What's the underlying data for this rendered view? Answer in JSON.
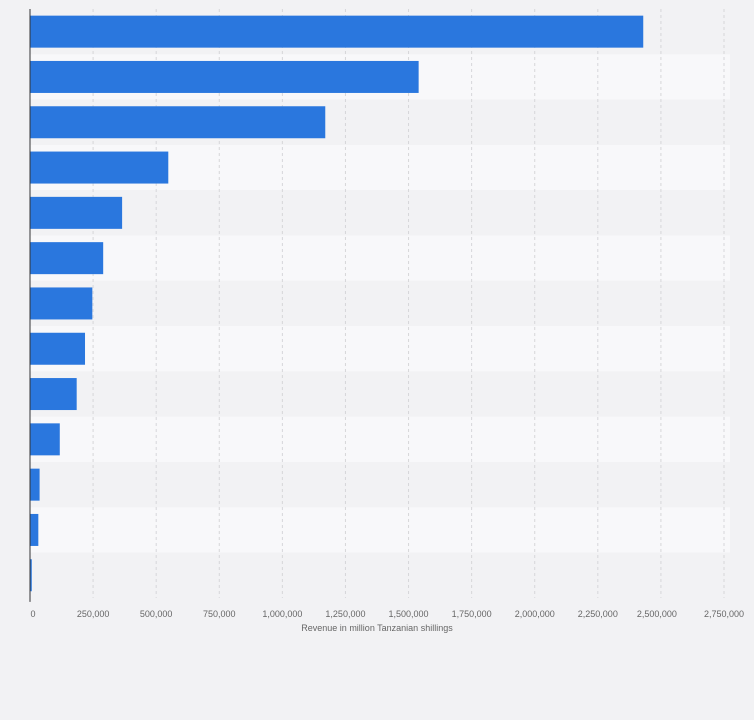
{
  "chart_data": {
    "type": "bar",
    "orientation": "horizontal",
    "title": "",
    "xlabel": "Revenue in million Tanzanian shillings",
    "ylabel": "",
    "categories": [
      "",
      "",
      "",
      "",
      "",
      "",
      "",
      "",
      "",
      "",
      "",
      "",
      ""
    ],
    "values": [
      2430000,
      1540000,
      1170000,
      548000,
      365000,
      290000,
      247000,
      218000,
      185000,
      118000,
      38000,
      33000,
      7000
    ],
    "xlim": [
      0,
      2750000
    ],
    "xticks": [
      0,
      250000,
      500000,
      750000,
      1000000,
      1250000,
      1500000,
      1750000,
      2000000,
      2250000,
      2500000,
      2750000
    ],
    "xtick_labels": [
      "0",
      "250,000",
      "500,000",
      "750,000",
      "1,000,000",
      "1,250,000",
      "1,500,000",
      "1,750,000",
      "2,000,000",
      "2,250,000",
      "2,500,000",
      "2,750,000"
    ],
    "grid": "vertical dashed",
    "legend": "none",
    "bar_color": "#2a77de",
    "band_colors": [
      "#f2f2f4",
      "#f8f8fa"
    ],
    "background": "#f2f2f4"
  }
}
